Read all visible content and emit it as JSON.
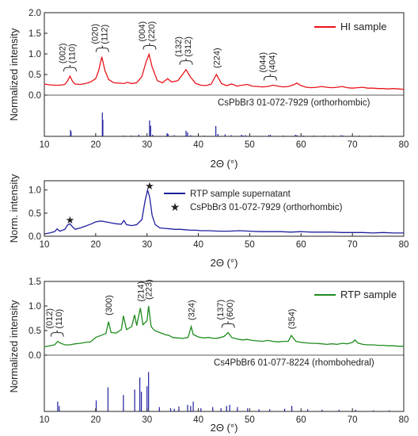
{
  "colors": {
    "red": "#e8141a",
    "blue": "#1f1f9e",
    "green": "#1e8c1e",
    "axis": "#222222"
  },
  "panel1": {
    "ylabel": "Normalized intensity",
    "xlabel": "2Θ (°)",
    "legend": "HI sample",
    "ref_label": "CsPbBr3 01-072-7929 (orthorhombic)"
  },
  "panel2": {
    "ylabel": "Norm. intensity",
    "xlabel": "2Θ (°)",
    "legend_line": "RTP sample supernatant",
    "legend_star": "CsPbBr3 01-072-7929 (orthorhombic)"
  },
  "panel3": {
    "ylabel": "Normalized intensity",
    "xlabel": "2Θ (°)",
    "legend": "RTP sample",
    "ref_label": "Cs4PbBr6  01-077-8224  (rhombohedral)"
  },
  "chart_data": [
    {
      "type": "line",
      "series": [
        {
          "name": "HI sample",
          "color": "#e8141a",
          "x": [
            10,
            11,
            12,
            13,
            14,
            14.5,
            15,
            15.5,
            16,
            17,
            18,
            19,
            20,
            20.6,
            21.2,
            21.8,
            22.5,
            23.5,
            24.5,
            25.5,
            26.2,
            27,
            28,
            29,
            29.8,
            30.4,
            31,
            32,
            33,
            34,
            34.8,
            36,
            36.8,
            37.6,
            38.4,
            39.5,
            40.5,
            41.5,
            42.5,
            43.5,
            44.5,
            45.5,
            46.5,
            47.5,
            48.5,
            49.5,
            50.5,
            51.5,
            52.5,
            53.5,
            54.5,
            55.5,
            56.5,
            57.5,
            58.5,
            59.2,
            60,
            61,
            62,
            63,
            64,
            65,
            66,
            67,
            68,
            69,
            70,
            71,
            72,
            73,
            74,
            75,
            76,
            77,
            78,
            79,
            80
          ],
          "y": [
            0.27,
            0.25,
            0.24,
            0.24,
            0.26,
            0.34,
            0.46,
            0.33,
            0.27,
            0.26,
            0.28,
            0.32,
            0.4,
            0.6,
            0.93,
            0.6,
            0.38,
            0.3,
            0.29,
            0.28,
            0.31,
            0.28,
            0.3,
            0.45,
            0.8,
            0.99,
            0.68,
            0.35,
            0.3,
            0.4,
            0.32,
            0.35,
            0.48,
            0.62,
            0.45,
            0.28,
            0.24,
            0.23,
            0.27,
            0.5,
            0.28,
            0.23,
            0.27,
            0.22,
            0.24,
            0.26,
            0.22,
            0.21,
            0.2,
            0.21,
            0.24,
            0.22,
            0.2,
            0.21,
            0.25,
            0.29,
            0.23,
            0.19,
            0.18,
            0.19,
            0.21,
            0.19,
            0.18,
            0.19,
            0.21,
            0.18,
            0.17,
            0.18,
            0.19,
            0.17,
            0.17,
            0.16,
            0.16,
            0.15,
            0.16,
            0.15,
            0.14
          ]
        }
      ],
      "reference": {
        "name": "CsPbBr3 01-072-7929 (orthorhombic)",
        "x": [
          15.1,
          15.2,
          21.3,
          21.4,
          25.4,
          26.9,
          28.4,
          30.5,
          30.7,
          31.1,
          33.9,
          34.1,
          35.3,
          37.6,
          37.9,
          38.5,
          41.2,
          43.4,
          43.8,
          45.2,
          46.4,
          48.4,
          48.7,
          49.2,
          53.7,
          54.0,
          56.5,
          58.9,
          59.2,
          60.5,
          62.5,
          64.6,
          66.3,
          67.8,
          68.2,
          71.4,
          73.5,
          75.8,
          77.3,
          78.9
        ],
        "y": [
          0.16,
          0.12,
          0.6,
          0.42,
          0.02,
          0.02,
          0.04,
          0.4,
          0.27,
          0.04,
          0.08,
          0.06,
          0.03,
          0.14,
          0.1,
          0.03,
          0.02,
          0.26,
          0.06,
          0.05,
          0.03,
          0.04,
          0.02,
          0.03,
          0.03,
          0.04,
          0.02,
          0.04,
          0.03,
          0.02,
          0.02,
          0.02,
          0.02,
          0.03,
          0.02,
          0.02,
          0.02,
          0.02,
          0.01,
          0.01
        ]
      },
      "annotations": [
        {
          "x": 15.0,
          "labels": [
            "(002)",
            "(110)"
          ]
        },
        {
          "x": 21.3,
          "labels": [
            "(020)",
            "(112)"
          ]
        },
        {
          "x": 30.5,
          "labels": [
            "(004)",
            "(220)"
          ]
        },
        {
          "x": 37.6,
          "labels": [
            "(132)",
            "(312)"
          ]
        },
        {
          "x": 43.5,
          "labels": [
            "(224)"
          ]
        },
        {
          "x": 54.0,
          "labels": [
            "(044)",
            "(404)"
          ]
        }
      ],
      "xlim": [
        10,
        80
      ],
      "ylim": [
        0,
        2.0
      ],
      "xticks": [
        10,
        20,
        30,
        40,
        50,
        60,
        70,
        80
      ],
      "yticks": [
        0.0,
        0.5,
        1.0,
        1.5,
        2.0
      ],
      "ytick_labels": [
        "0.0",
        "0.5",
        "1.0",
        "1.5",
        "2.0"
      ],
      "xlabel": "2Θ (°)",
      "ylabel": "Normalized intensity",
      "legend": "top-right"
    },
    {
      "type": "line",
      "series": [
        {
          "name": "RTP sample supernatant",
          "color": "#1f1f9e",
          "x": [
            10,
            11,
            12,
            12.5,
            13,
            14,
            14.5,
            15,
            15.5,
            16,
            17,
            18,
            19,
            20,
            21,
            22,
            23,
            24,
            25,
            25.5,
            26,
            27,
            28,
            29,
            29.6,
            30.1,
            30.5,
            31,
            31.6,
            32.5,
            33.5,
            34.5,
            35.5,
            36.5,
            37.5,
            38.5,
            39.5,
            40.5,
            42,
            44,
            46,
            48,
            50,
            52,
            54,
            56,
            58,
            60,
            62,
            64,
            66,
            68,
            70,
            72,
            74,
            76,
            78,
            80
          ],
          "y": [
            0.05,
            0.07,
            0.1,
            0.16,
            0.11,
            0.15,
            0.24,
            0.27,
            0.2,
            0.15,
            0.18,
            0.22,
            0.26,
            0.31,
            0.33,
            0.31,
            0.29,
            0.27,
            0.26,
            0.34,
            0.25,
            0.23,
            0.25,
            0.36,
            0.75,
            1.0,
            0.85,
            0.45,
            0.25,
            0.18,
            0.17,
            0.16,
            0.15,
            0.15,
            0.14,
            0.13,
            0.13,
            0.12,
            0.12,
            0.11,
            0.11,
            0.12,
            0.11,
            0.1,
            0.1,
            0.1,
            0.09,
            0.1,
            0.09,
            0.09,
            0.09,
            0.08,
            0.08,
            0.08,
            0.07,
            0.08,
            0.07,
            0.07
          ]
        }
      ],
      "markers": [
        {
          "name": "CsPbBr3 01-072-7929 (orthorhombic)",
          "x": 15.0,
          "y": 0.36,
          "color": "#e8141a"
        },
        {
          "name": "CsPbBr3 01-072-7929 (orthorhombic)",
          "x": 30.5,
          "y": 1.1,
          "color": "#e8141a"
        }
      ],
      "xlim": [
        10,
        80
      ],
      "ylim": [
        0,
        1.2
      ],
      "xticks": [
        10,
        20,
        30,
        40,
        50,
        60,
        70,
        80
      ],
      "yticks": [
        0.0,
        0.5,
        1.0
      ],
      "ytick_labels": [
        "0.0",
        "0.5",
        "1.0"
      ],
      "xlabel": "2Θ (°)",
      "ylabel": "Norm. intensity",
      "legend": "top-right"
    },
    {
      "type": "line",
      "series": [
        {
          "name": "RTP sample",
          "color": "#1e8c1e",
          "x": [
            10,
            11,
            12,
            12.6,
            13.2,
            14,
            15,
            16,
            17,
            18,
            19,
            20,
            21,
            22,
            22.5,
            23,
            24,
            25,
            25.4,
            26,
            27,
            27.6,
            28,
            28.7,
            29.2,
            30,
            30.3,
            30.8,
            31.5,
            32.5,
            33.5,
            34.3,
            35,
            36,
            37,
            38,
            38.6,
            39,
            40,
            41,
            42,
            43,
            44,
            45,
            45.8,
            46.5,
            47.5,
            48.5,
            49.5,
            50.5,
            51.5,
            52.5,
            53.5,
            54.5,
            55.5,
            56.5,
            57.5,
            58.1,
            59,
            60,
            61,
            62,
            63,
            64,
            65,
            66,
            67,
            68,
            69,
            70,
            70.5,
            71,
            72,
            73,
            74,
            75,
            76,
            77,
            78,
            79,
            80
          ],
          "y": [
            0.17,
            0.19,
            0.21,
            0.28,
            0.24,
            0.21,
            0.21,
            0.23,
            0.24,
            0.26,
            0.27,
            0.36,
            0.4,
            0.44,
            0.68,
            0.46,
            0.45,
            0.52,
            0.8,
            0.52,
            0.58,
            0.82,
            0.6,
            0.96,
            0.62,
            0.7,
            1.0,
            0.58,
            0.5,
            0.46,
            0.42,
            0.4,
            0.36,
            0.35,
            0.34,
            0.36,
            0.58,
            0.42,
            0.37,
            0.35,
            0.36,
            0.34,
            0.35,
            0.38,
            0.46,
            0.36,
            0.33,
            0.31,
            0.32,
            0.3,
            0.29,
            0.28,
            0.3,
            0.28,
            0.27,
            0.28,
            0.28,
            0.4,
            0.28,
            0.26,
            0.25,
            0.24,
            0.24,
            0.23,
            0.22,
            0.23,
            0.22,
            0.24,
            0.23,
            0.26,
            0.31,
            0.25,
            0.22,
            0.21,
            0.21,
            0.2,
            0.2,
            0.19,
            0.19,
            0.18,
            0.18
          ]
        }
      ],
      "reference": {
        "name": "Cs4PbBr6  01-077-8224  (rhombohedral)",
        "x": [
          12.6,
          12.9,
          20.1,
          22.4,
          25.4,
          27.6,
          28.6,
          28.9,
          30.0,
          30.3,
          32.4,
          34.6,
          35.3,
          36.2,
          37.9,
          38.5,
          39.0,
          40.5,
          42.8,
          44.4,
          45.5,
          46.1,
          47.6,
          49.6,
          51.8,
          53.9,
          56.8,
          58.2,
          61.3,
          64.1,
          67.4,
          70.6,
          74.1,
          77.2
        ],
        "y": [
          0.18,
          0.1,
          0.2,
          0.44,
          0.3,
          0.4,
          0.62,
          0.36,
          0.46,
          0.72,
          0.08,
          0.06,
          0.05,
          0.09,
          0.12,
          0.1,
          0.18,
          0.06,
          0.08,
          0.06,
          0.1,
          0.12,
          0.08,
          0.06,
          0.04,
          0.04,
          0.05,
          0.1,
          0.04,
          0.03,
          0.03,
          0.03,
          0.02,
          0.02
        ]
      },
      "annotations": [
        {
          "x": 12.5,
          "labels": [
            "(012)",
            "(110)"
          ]
        },
        {
          "x": 22.5,
          "labels": [
            "(300)"
          ]
        },
        {
          "x": 28.7,
          "labels": [
            "(214)"
          ]
        },
        {
          "x": 30.3,
          "labels": [
            "(223)"
          ]
        },
        {
          "x": 38.6,
          "labels": [
            "(324)"
          ]
        },
        {
          "x": 45.8,
          "labels": [
            "(137)",
            "(600)"
          ]
        },
        {
          "x": 58.1,
          "labels": [
            "(354)"
          ]
        }
      ],
      "xlim": [
        10,
        80
      ],
      "ylim": [
        0,
        1.5
      ],
      "xticks": [
        10,
        20,
        30,
        40,
        50,
        60,
        70,
        80
      ],
      "yticks": [
        0.0,
        0.5,
        1.0,
        1.5
      ],
      "ytick_labels": [
        "0.0",
        "0.5",
        "1.0",
        "1.5"
      ],
      "xlabel": "2Θ (°)",
      "ylabel": "Normalized intensity",
      "legend": "top-right"
    }
  ]
}
